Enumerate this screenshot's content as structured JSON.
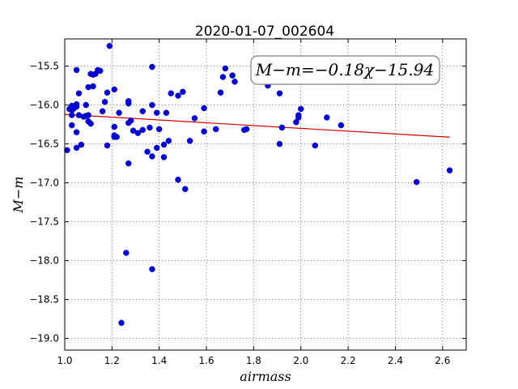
{
  "chart_data": {
    "type": "scatter",
    "title": "2020-01-07_002604",
    "xlabel": "airmass",
    "ylabel": "M−m",
    "annotation": "M−m=−0.18χ−15.94",
    "xlim": [
      1.0,
      2.7
    ],
    "ylim": [
      -19.15,
      -15.15
    ],
    "y_inverted": true,
    "grid": true,
    "xticks": [
      1.0,
      1.2,
      1.4,
      1.6,
      1.8,
      2.0,
      2.2,
      2.4,
      2.6
    ],
    "xtick_labels": [
      "1.0",
      "1.2",
      "1.4",
      "1.6",
      "1.8",
      "2.0",
      "2.2",
      "2.4",
      "2.6"
    ],
    "yticks": [
      -15.5,
      -16.0,
      -16.5,
      -17.0,
      -17.5,
      -18.0,
      -18.5,
      -19.0
    ],
    "ytick_labels": [
      "−15.5",
      "−16.0",
      "−16.5",
      "−17.0",
      "−17.5",
      "−18.0",
      "−18.5",
      "−19.0"
    ],
    "fit": {
      "slope": -0.18,
      "intercept": -15.94,
      "x_range": [
        1.0,
        2.63
      ],
      "color": "#d40000"
    },
    "point_color": "#0000cc",
    "points": [
      [
        1.19,
        -15.24
      ],
      [
        1.15,
        -15.56
      ],
      [
        1.05,
        -15.55
      ],
      [
        1.14,
        -15.55
      ],
      [
        1.11,
        -15.6
      ],
      [
        1.12,
        -15.61
      ],
      [
        1.13,
        -15.6
      ],
      [
        1.1,
        -15.77
      ],
      [
        1.12,
        -15.76
      ],
      [
        1.21,
        -15.8
      ],
      [
        1.18,
        -15.84
      ],
      [
        1.06,
        -15.85
      ],
      [
        1.17,
        -15.96
      ],
      [
        1.27,
        -15.95
      ],
      [
        1.27,
        -15.98
      ],
      [
        1.03,
        -16.01
      ],
      [
        1.05,
        -16.02
      ],
      [
        1.05,
        -15.99
      ],
      [
        1.02,
        -16.05
      ],
      [
        1.09,
        -16.0
      ],
      [
        1.03,
        -16.07
      ],
      [
        1.04,
        -16.04
      ],
      [
        1.08,
        -16.15
      ],
      [
        1.09,
        -16.14
      ],
      [
        1.1,
        -16.13
      ],
      [
        1.03,
        -16.13
      ],
      [
        1.06,
        -16.13
      ],
      [
        1.16,
        -16.08
      ],
      [
        1.23,
        -16.1
      ],
      [
        1.28,
        -16.2
      ],
      [
        1.1,
        -16.21
      ],
      [
        1.11,
        -16.24
      ],
      [
        1.03,
        -16.26
      ],
      [
        1.05,
        -16.35
      ],
      [
        1.27,
        -16.23
      ],
      [
        1.21,
        -16.28
      ],
      [
        1.21,
        -16.39
      ],
      [
        1.21,
        -16.41
      ],
      [
        1.22,
        -16.41
      ],
      [
        1.18,
        -16.52
      ],
      [
        1.05,
        -16.55
      ],
      [
        1.07,
        -16.51
      ],
      [
        1.01,
        -16.58
      ],
      [
        1.29,
        -16.33
      ],
      [
        1.31,
        -16.36
      ],
      [
        1.33,
        -16.32
      ],
      [
        1.35,
        -16.6
      ],
      [
        1.37,
        -16.66
      ],
      [
        1.39,
        -16.55
      ],
      [
        1.36,
        -16.29
      ],
      [
        1.33,
        -16.08
      ],
      [
        1.37,
        -16.0
      ],
      [
        1.39,
        -16.1
      ],
      [
        1.4,
        -16.31
      ],
      [
        1.42,
        -16.67
      ],
      [
        1.42,
        -16.51
      ],
      [
        1.44,
        -16.46
      ],
      [
        1.43,
        -16.1
      ],
      [
        1.45,
        -15.85
      ],
      [
        1.48,
        -15.88
      ],
      [
        1.5,
        -15.83
      ],
      [
        1.53,
        -16.46
      ],
      [
        1.55,
        -16.17
      ],
      [
        1.59,
        -16.04
      ],
      [
        1.59,
        -16.34
      ],
      [
        1.64,
        -16.31
      ],
      [
        1.66,
        -15.84
      ],
      [
        1.67,
        -15.64
      ],
      [
        1.68,
        -15.53
      ],
      [
        1.71,
        -15.62
      ],
      [
        1.72,
        -15.7
      ],
      [
        1.76,
        -16.32
      ],
      [
        1.77,
        -16.31
      ],
      [
        1.86,
        -15.75
      ],
      [
        1.91,
        -15.85
      ],
      [
        1.91,
        -16.5
      ],
      [
        1.92,
        -16.29
      ],
      [
        1.98,
        -16.22
      ],
      [
        1.99,
        -16.16
      ],
      [
        1.99,
        -16.13
      ],
      [
        2.0,
        -16.05
      ],
      [
        2.06,
        -16.52
      ],
      [
        2.11,
        -16.16
      ],
      [
        2.17,
        -16.26
      ],
      [
        2.49,
        -16.99
      ],
      [
        2.63,
        -16.84
      ],
      [
        1.37,
        -15.51
      ],
      [
        1.27,
        -16.75
      ],
      [
        1.48,
        -16.96
      ],
      [
        1.51,
        -17.08
      ],
      [
        1.26,
        -17.9
      ],
      [
        1.37,
        -18.11
      ],
      [
        1.24,
        -18.8
      ]
    ]
  }
}
